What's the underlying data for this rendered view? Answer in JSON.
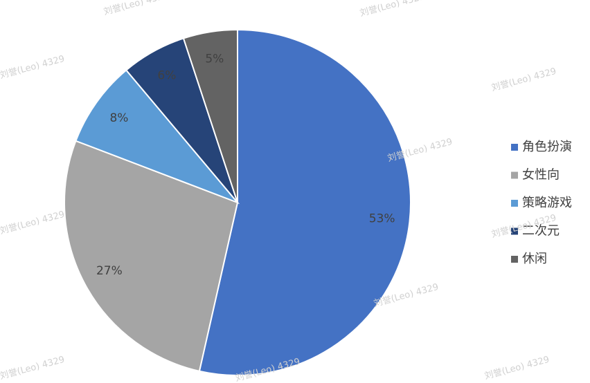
{
  "chart_data": {
    "type": "pie",
    "categories": [
      "角色扮演",
      "女性向",
      "策略游戏",
      "二次元",
      "休闲"
    ],
    "values": [
      53,
      27,
      8,
      6,
      5
    ],
    "value_labels": [
      "53%",
      "27%",
      "8%",
      "6%",
      "5%"
    ],
    "colors": [
      "#4472c4",
      "#a5a5a5",
      "#5b9bd5",
      "#264478",
      "#636363"
    ],
    "legend": "right"
  },
  "watermark": "刘誉(Leo) 4329"
}
